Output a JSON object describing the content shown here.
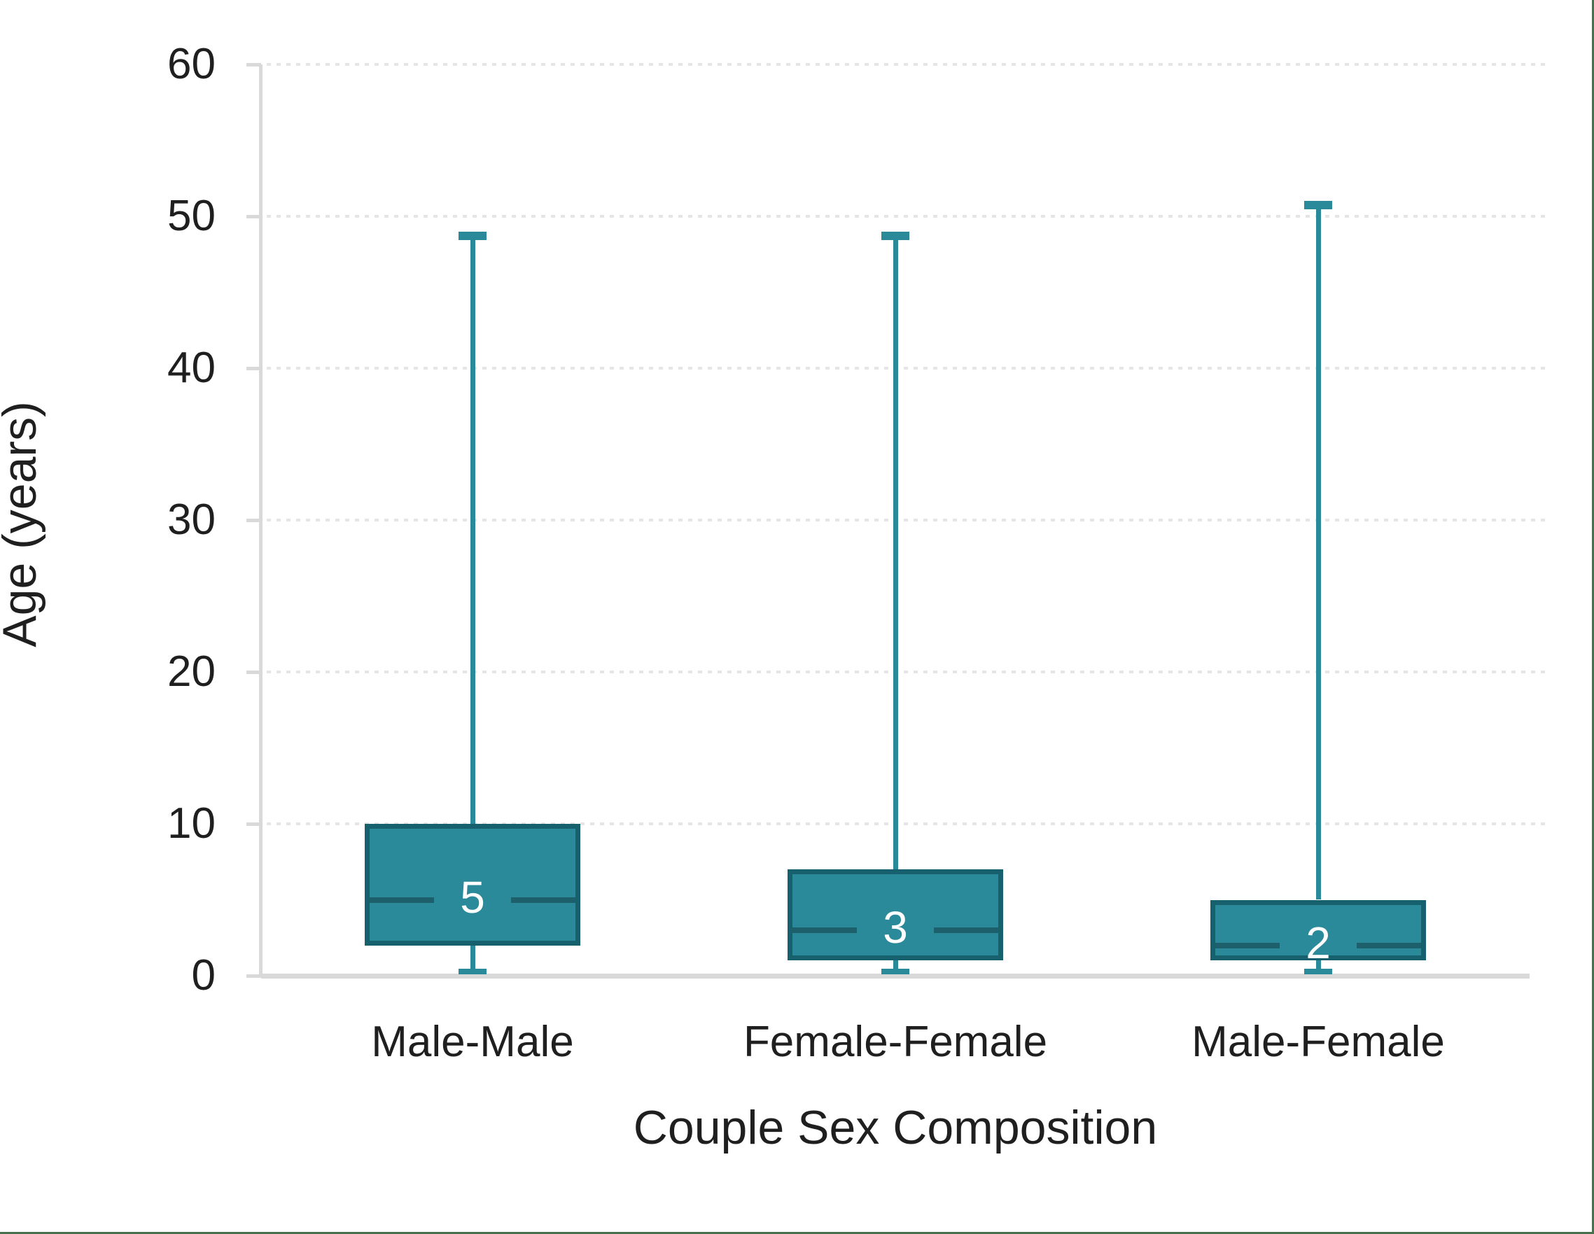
{
  "chart_data": {
    "type": "boxplot",
    "title": "",
    "xlabel": "Couple Sex Composition",
    "ylabel": "Age (years)",
    "ylim": [
      0,
      60
    ],
    "yticks": [
      0,
      10,
      20,
      30,
      40,
      50,
      60
    ],
    "grid": "horizontal-dotted",
    "legend": "none",
    "categories": [
      "Male-Male",
      "Female-Female",
      "Male-Female"
    ],
    "series": [
      {
        "category": "Male-Male",
        "whisker_low": 0,
        "q1": 2,
        "median": 5,
        "q3": 10,
        "whisker_high": 49,
        "median_label": "5"
      },
      {
        "category": "Female-Female",
        "whisker_low": 0,
        "q1": 1,
        "median": 3,
        "q3": 7,
        "whisker_high": 49,
        "median_label": "3"
      },
      {
        "category": "Male-Female",
        "whisker_low": 0,
        "q1": 1,
        "median": 2,
        "q3": 5,
        "whisker_high": 51,
        "median_label": "2"
      }
    ],
    "colors": {
      "box_fill": "#2a8a99",
      "box_border": "#17606e",
      "median_line": "#1d5f6b",
      "whisker": "#2a8a99",
      "median_label_text": "#ffffff",
      "axis_line": "#d9d9d9",
      "gridline": "#e5e5e5",
      "text": "#1f1f1f",
      "page_edge": "#47704f"
    }
  }
}
